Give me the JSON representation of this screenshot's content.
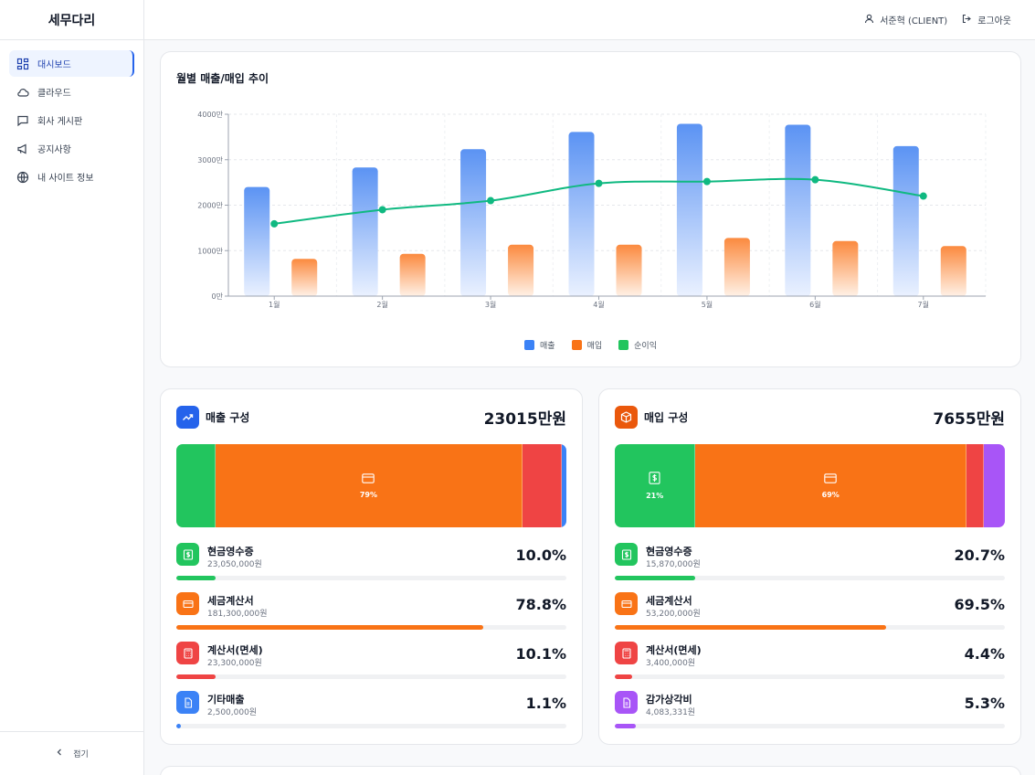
{
  "app": {
    "logo": "세무다리"
  },
  "sidebar": {
    "items": [
      {
        "label": "대시보드",
        "icon": "dashboard-icon",
        "active": true
      },
      {
        "label": "클라우드",
        "icon": "cloud-icon"
      },
      {
        "label": "회사 게시판",
        "icon": "message-icon"
      },
      {
        "label": "공지사항",
        "icon": "megaphone-icon"
      },
      {
        "label": "내 사이트 정보",
        "icon": "globe-icon"
      }
    ],
    "collapse_label": "접기"
  },
  "header": {
    "user": "서준혁 (CLIENT)",
    "logout": "로그아웃"
  },
  "colors": {
    "sales": "#3b82f6",
    "purchase": "#f97316",
    "profit": "#10b981"
  },
  "chart_data": {
    "type": "bar",
    "title": "월별 매출/매입 추이",
    "categories": [
      "1월",
      "2월",
      "3월",
      "4월",
      "5월",
      "6월",
      "7월"
    ],
    "y_ticks": [
      "0만",
      "1000만",
      "2000만",
      "3000만",
      "4000만"
    ],
    "ylim": [
      0,
      4000
    ],
    "series": [
      {
        "name": "매출",
        "kind": "bar",
        "values": [
          2400,
          2830,
          3230,
          3610,
          3790,
          3770,
          3300
        ]
      },
      {
        "name": "매입",
        "kind": "bar",
        "values": [
          820,
          930,
          1130,
          1130,
          1280,
          1210,
          1100
        ]
      },
      {
        "name": "순이익",
        "kind": "line",
        "values": [
          1590,
          1900,
          2100,
          2480,
          2520,
          2560,
          2200
        ]
      }
    ],
    "legend": [
      "매출",
      "매입",
      "순이익"
    ]
  },
  "sales": {
    "title": "매출 구성",
    "total": "23015만원",
    "segments": [
      {
        "pct": 10.0,
        "color": "#22c55e",
        "label": ""
      },
      {
        "pct": 78.8,
        "color": "#f97316",
        "label": "79%"
      },
      {
        "pct": 10.1,
        "color": "#ef4444",
        "label": ""
      },
      {
        "pct": 1.1,
        "color": "#3b82f6",
        "label": ""
      }
    ],
    "rows": [
      {
        "name": "현금영수증",
        "amount": "23,050,000원",
        "pct_text": "10.0%",
        "pct": 10.0,
        "color": "#22c55e",
        "icon": "dollar-icon"
      },
      {
        "name": "세금계산서",
        "amount": "181,300,000원",
        "pct_text": "78.8%",
        "pct": 78.8,
        "color": "#f97316",
        "icon": "card-icon"
      },
      {
        "name": "계산서(면세)",
        "amount": "23,300,000원",
        "pct_text": "10.1%",
        "pct": 10.1,
        "color": "#ef4444",
        "icon": "calculator-icon"
      },
      {
        "name": "기타매출",
        "amount": "2,500,000원",
        "pct_text": "1.1%",
        "pct": 1.1,
        "color": "#3b82f6",
        "icon": "document-icon"
      }
    ]
  },
  "purchase": {
    "title": "매입 구성",
    "total": "7655만원",
    "segments": [
      {
        "pct": 20.7,
        "color": "#22c55e",
        "label": "21%"
      },
      {
        "pct": 69.5,
        "color": "#f97316",
        "label": "69%"
      },
      {
        "pct": 4.4,
        "color": "#ef4444",
        "label": ""
      },
      {
        "pct": 5.3,
        "color": "#a855f7",
        "label": ""
      }
    ],
    "rows": [
      {
        "name": "현금영수증",
        "amount": "15,870,000원",
        "pct_text": "20.7%",
        "pct": 20.7,
        "color": "#22c55e",
        "icon": "dollar-icon"
      },
      {
        "name": "세금계산서",
        "amount": "53,200,000원",
        "pct_text": "69.5%",
        "pct": 69.5,
        "color": "#f97316",
        "icon": "card-icon"
      },
      {
        "name": "계산서(면세)",
        "amount": "3,400,000원",
        "pct_text": "4.4%",
        "pct": 4.4,
        "color": "#ef4444",
        "icon": "calculator-icon"
      },
      {
        "name": "감가상각비",
        "amount": "4,083,331원",
        "pct_text": "5.3%",
        "pct": 5.3,
        "color": "#a855f7",
        "icon": "document-icon"
      }
    ]
  }
}
